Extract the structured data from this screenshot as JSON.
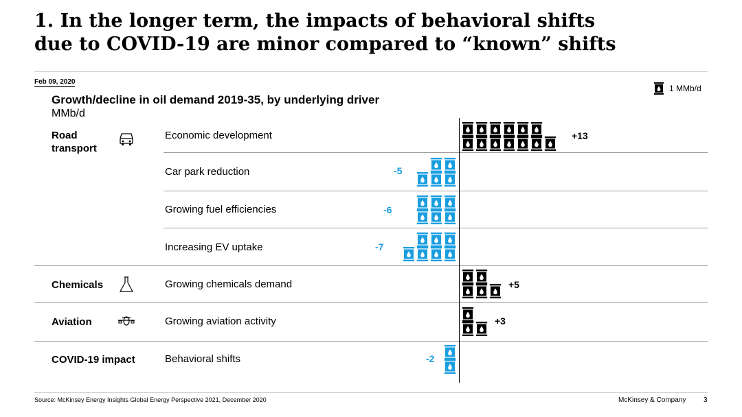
{
  "slide": {
    "title_line1": "1. In the longer term, the impacts of behavioral shifts",
    "title_line2": "due to COVID-19 are minor compared to “known” shifts",
    "date": "Feb 09, 2020"
  },
  "legend": {
    "label": "1 MMb/d",
    "icon": "oil-barrel-icon"
  },
  "colors": {
    "positive": "#000000",
    "negative": "#1a9ee0"
  },
  "chart_data": {
    "type": "bar",
    "title": "Growth/decline in oil demand 2019-35, by underlying driver",
    "ylabel": "MMb/d",
    "unit_per_icon": "1 MMb/d",
    "categories": [
      "Road transport",
      "Chemicals",
      "Aviation",
      "COVID-19 impact"
    ],
    "rows": [
      {
        "category": "Road transport",
        "driver": "Economic development",
        "value": 13,
        "label": "+13"
      },
      {
        "category": "Road transport",
        "driver": "Car park reduction",
        "value": -5,
        "label": "-5"
      },
      {
        "category": "Road transport",
        "driver": "Growing fuel efficiencies",
        "value": -6,
        "label": "-6"
      },
      {
        "category": "Road transport",
        "driver": "Increasing EV uptake",
        "value": -7,
        "label": "-7"
      },
      {
        "category": "Chemicals",
        "driver": "Growing chemicals demand",
        "value": 5,
        "label": "+5"
      },
      {
        "category": "Aviation",
        "driver": "Growing aviation activity",
        "value": 3,
        "label": "+3"
      },
      {
        "category": "COVID-19 impact",
        "driver": "Behavioral shifts",
        "value": -2,
        "label": "-2"
      }
    ]
  },
  "footer": {
    "source": "Source: McKinsey Energy Insights Global Energy Perspective 2021, December 2020",
    "company": "McKinsey & Company",
    "page": "3"
  }
}
